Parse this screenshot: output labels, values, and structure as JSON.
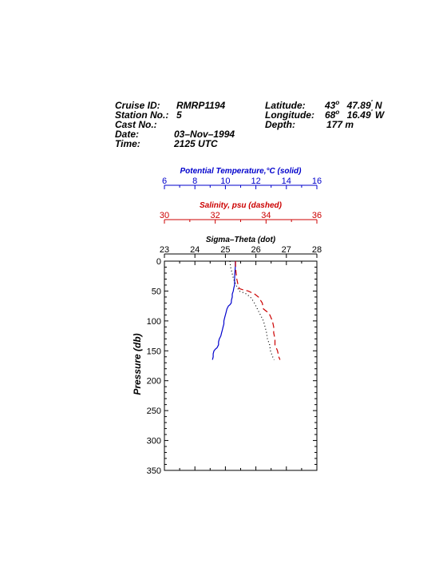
{
  "header": {
    "cruise_label": "Cruise ID:",
    "cruise_value": "RMRP1194",
    "station_label": "Station No.:",
    "station_value": "5",
    "cast_label": "Cast No.:",
    "cast_value": "",
    "date_label": "Date:",
    "date_value": "03–Nov–1994",
    "time_label": "Time:",
    "time_value": "2125 UTC",
    "latitude_label": "Latitude:",
    "latitude_deg": "43",
    "latitude_deg_sym": "o",
    "latitude_min": "47.89",
    "latitude_min_sym": "'",
    "latitude_hem": "N",
    "longitude_label": "Longitude:",
    "longitude_deg": "68",
    "longitude_deg_sym": "o",
    "longitude_min": "16.49",
    "longitude_min_sym": "'",
    "longitude_hem": "W",
    "depth_label": "Depth:",
    "depth_value": "177 m"
  },
  "chart_data": {
    "type": "line",
    "ylabel": "Pressure (db)",
    "y_inverted": true,
    "ylim": [
      0,
      350
    ],
    "yticks": [
      0,
      50,
      100,
      150,
      200,
      250,
      300,
      350
    ],
    "grid": false,
    "axes": [
      {
        "key": "temp",
        "title": "Potential Temperature,°C (solid)",
        "lim": [
          6,
          16
        ],
        "ticks": [
          6,
          8,
          10,
          12,
          14,
          16
        ],
        "color": "#0000cc"
      },
      {
        "key": "sal",
        "title": "Salinity, psu  (dashed)",
        "lim": [
          30,
          36
        ],
        "ticks": [
          30,
          32,
          34,
          36
        ],
        "color": "#cc0000"
      },
      {
        "key": "sigma",
        "title": "Sigma–Theta (dot)",
        "lim": [
          23,
          28
        ],
        "ticks": [
          23,
          24,
          25,
          26,
          27,
          28
        ],
        "color": "#000000"
      }
    ],
    "series": [
      {
        "axis": "temp",
        "style": "solid",
        "color": "#0000cc",
        "points": [
          [
            10.65,
            0
          ],
          [
            10.65,
            10
          ],
          [
            10.62,
            20
          ],
          [
            10.6,
            30
          ],
          [
            10.6,
            40
          ],
          [
            10.55,
            45
          ],
          [
            10.52,
            50
          ],
          [
            10.45,
            55
          ],
          [
            10.45,
            60
          ],
          [
            10.4,
            65
          ],
          [
            10.38,
            70
          ],
          [
            10.3,
            73
          ],
          [
            10.2,
            75
          ],
          [
            10.1,
            80
          ],
          [
            10.05,
            85
          ],
          [
            10,
            90
          ],
          [
            9.95,
            95
          ],
          [
            9.9,
            100
          ],
          [
            9.9,
            105
          ],
          [
            9.85,
            110
          ],
          [
            9.8,
            115
          ],
          [
            9.75,
            120
          ],
          [
            9.7,
            125
          ],
          [
            9.6,
            130
          ],
          [
            9.55,
            135
          ],
          [
            9.55,
            140
          ],
          [
            9.45,
            145
          ],
          [
            9.35,
            147
          ],
          [
            9.25,
            150
          ],
          [
            9.2,
            155
          ],
          [
            9.2,
            160
          ],
          [
            9.15,
            165
          ]
        ]
      },
      {
        "axis": "sal",
        "style": "dashed",
        "color": "#cc0000",
        "points": [
          [
            32.8,
            0
          ],
          [
            32.8,
            10
          ],
          [
            32.82,
            20
          ],
          [
            32.85,
            30
          ],
          [
            32.9,
            40
          ],
          [
            32.95,
            46
          ],
          [
            33.1,
            48
          ],
          [
            33.3,
            50
          ],
          [
            33.55,
            55
          ],
          [
            33.7,
            60
          ],
          [
            33.85,
            70
          ],
          [
            33.9,
            80
          ],
          [
            34.05,
            85
          ],
          [
            34.15,
            90
          ],
          [
            34.25,
            100
          ],
          [
            34.3,
            110
          ],
          [
            34.3,
            120
          ],
          [
            34.35,
            130
          ],
          [
            34.35,
            140
          ],
          [
            34.45,
            150
          ],
          [
            34.5,
            160
          ],
          [
            34.55,
            165
          ]
        ]
      },
      {
        "axis": "sigma",
        "style": "dotted",
        "color": "#000000",
        "points": [
          [
            25.15,
            0
          ],
          [
            25.17,
            10
          ],
          [
            25.22,
            20
          ],
          [
            25.27,
            30
          ],
          [
            25.35,
            40
          ],
          [
            25.45,
            50
          ],
          [
            25.7,
            55
          ],
          [
            25.85,
            62
          ],
          [
            25.95,
            70
          ],
          [
            26.05,
            80
          ],
          [
            26.15,
            90
          ],
          [
            26.25,
            100
          ],
          [
            26.3,
            110
          ],
          [
            26.35,
            120
          ],
          [
            26.38,
            130
          ],
          [
            26.45,
            140
          ],
          [
            26.48,
            150
          ],
          [
            26.55,
            160
          ],
          [
            26.6,
            165
          ]
        ]
      }
    ]
  }
}
